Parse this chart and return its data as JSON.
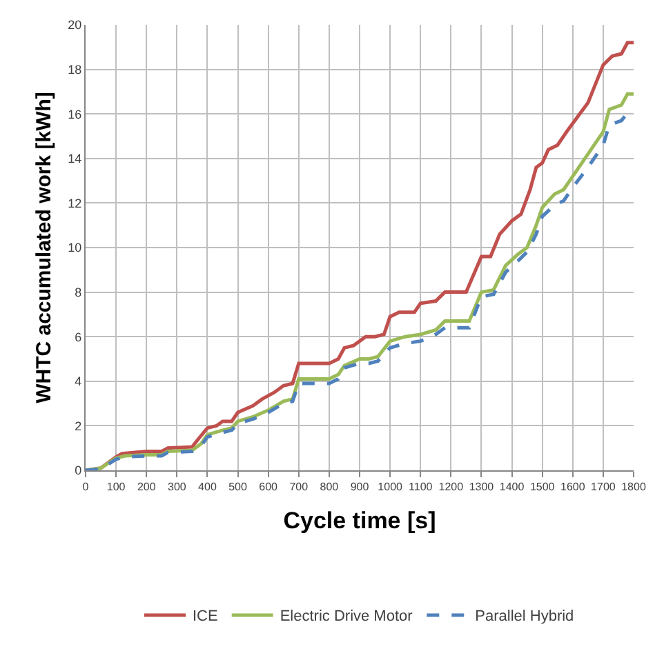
{
  "chart_data": {
    "type": "line",
    "xlabel": "Cycle time [s]",
    "ylabel": "WHTC accumulated work [kWh]",
    "xlim": [
      0,
      1800
    ],
    "xticks": [
      0,
      100,
      200,
      300,
      400,
      500,
      600,
      700,
      800,
      900,
      1000,
      1100,
      1200,
      1300,
      1400,
      1500,
      1600,
      1700,
      1800
    ],
    "ylim": [
      0,
      20
    ],
    "yticks": [
      0,
      2,
      4,
      6,
      8,
      10,
      12,
      14,
      16,
      18,
      20
    ],
    "grid": true,
    "legend": "bottom",
    "series": [
      {
        "name": "ICE",
        "color": "#c0504d",
        "line_style": "solid",
        "x": [
          0,
          50,
          100,
          120,
          200,
          250,
          270,
          350,
          370,
          400,
          430,
          450,
          480,
          500,
          550,
          580,
          620,
          650,
          680,
          700,
          800,
          830,
          850,
          880,
          920,
          950,
          980,
          1000,
          1030,
          1080,
          1100,
          1150,
          1180,
          1250,
          1300,
          1330,
          1360,
          1400,
          1430,
          1460,
          1480,
          1500,
          1520,
          1550,
          1580,
          1650,
          1700,
          1730,
          1760,
          1780,
          1800
        ],
        "values": [
          0,
          0.1,
          0.6,
          0.75,
          0.85,
          0.85,
          1.0,
          1.05,
          1.4,
          1.9,
          2.0,
          2.2,
          2.2,
          2.6,
          2.9,
          3.2,
          3.5,
          3.8,
          3.9,
          4.8,
          4.8,
          5.0,
          5.5,
          5.6,
          6.0,
          6.0,
          6.1,
          6.9,
          7.1,
          7.1,
          7.5,
          7.6,
          8.0,
          8.0,
          9.6,
          9.6,
          10.6,
          11.2,
          11.5,
          12.6,
          13.6,
          13.8,
          14.4,
          14.6,
          15.2,
          16.5,
          18.2,
          18.6,
          18.7,
          19.2,
          19.2
        ]
      },
      {
        "name": "Electric Drive Motor",
        "color": "#9bbb59",
        "line_style": "solid",
        "x": [
          0,
          50,
          100,
          130,
          200,
          250,
          270,
          350,
          380,
          400,
          450,
          480,
          500,
          550,
          600,
          650,
          680,
          700,
          800,
          830,
          850,
          900,
          930,
          960,
          1000,
          1050,
          1100,
          1150,
          1180,
          1260,
          1300,
          1340,
          1380,
          1420,
          1450,
          1480,
          1500,
          1540,
          1570,
          1600,
          1650,
          1700,
          1720,
          1760,
          1780,
          1800
        ],
        "values": [
          0,
          0.1,
          0.55,
          0.65,
          0.7,
          0.7,
          0.85,
          0.9,
          1.2,
          1.6,
          1.8,
          1.9,
          2.2,
          2.4,
          2.7,
          3.1,
          3.2,
          4.1,
          4.1,
          4.3,
          4.7,
          5.0,
          5.0,
          5.1,
          5.8,
          6.0,
          6.1,
          6.3,
          6.7,
          6.7,
          8.0,
          8.1,
          9.2,
          9.7,
          10.0,
          11.0,
          11.8,
          12.4,
          12.6,
          13.2,
          14.2,
          15.2,
          16.2,
          16.4,
          16.9,
          16.9
        ]
      },
      {
        "name": "Parallel Hybrid",
        "color": "#4f81bd",
        "line_style": "dashed",
        "x": [
          0,
          50,
          100,
          130,
          200,
          250,
          270,
          350,
          380,
          400,
          450,
          480,
          500,
          550,
          600,
          650,
          680,
          700,
          800,
          830,
          850,
          900,
          930,
          960,
          1000,
          1050,
          1100,
          1150,
          1180,
          1260,
          1300,
          1340,
          1380,
          1420,
          1450,
          1480,
          1500,
          1540,
          1570,
          1600,
          1650,
          1700,
          1720,
          1760,
          1780,
          1800
        ],
        "values": [
          0,
          0.05,
          0.5,
          0.6,
          0.65,
          0.65,
          0.8,
          0.85,
          1.1,
          1.5,
          1.7,
          1.8,
          2.1,
          2.3,
          2.6,
          3.0,
          3.1,
          3.9,
          3.9,
          4.1,
          4.6,
          4.8,
          4.8,
          4.9,
          5.5,
          5.7,
          5.8,
          6.1,
          6.4,
          6.4,
          7.8,
          7.9,
          8.9,
          9.4,
          9.8,
          10.6,
          11.4,
          11.9,
          12.1,
          12.7,
          13.6,
          14.6,
          15.5,
          15.7,
          16.05,
          16.05
        ]
      }
    ]
  }
}
